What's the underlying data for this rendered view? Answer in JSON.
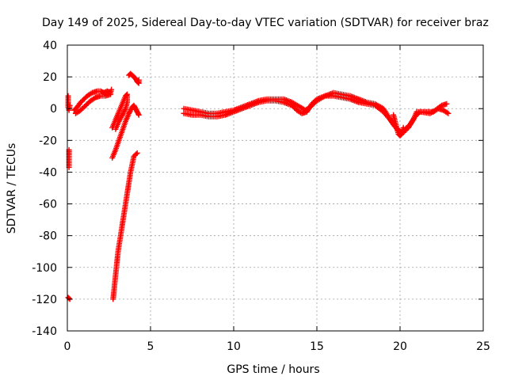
{
  "chart_data": {
    "type": "scatter",
    "title": "Day 149 of 2025, Sidereal Day-to-day VTEC variation (SDTVAR) for receiver braz",
    "xlabel": "GPS time / hours",
    "ylabel": "SDTVAR / TECUs",
    "xlim": [
      0,
      25
    ],
    "ylim": [
      -140,
      40
    ],
    "xticks": [
      0,
      5,
      10,
      15,
      20,
      25
    ],
    "yticks": [
      -140,
      -120,
      -100,
      -80,
      -60,
      -40,
      -20,
      0,
      20,
      40
    ],
    "grid": true,
    "marker": "+",
    "series": [
      {
        "name": "SDTVAR",
        "color": "#ff0000",
        "segments": [
          [
            [
              0.05,
              8
            ],
            [
              0.05,
              1
            ],
            [
              0.1,
              -1
            ],
            [
              0.15,
              2
            ]
          ],
          [
            [
              0.1,
              -26
            ],
            [
              0.1,
              -37
            ]
          ],
          [
            [
              0.05,
              -119
            ],
            [
              0.15,
              -120
            ]
          ],
          [
            [
              0.4,
              -1
            ],
            [
              0.6,
              1
            ],
            [
              0.8,
              4
            ],
            [
              1.0,
              6
            ],
            [
              1.2,
              8
            ],
            [
              1.5,
              10
            ],
            [
              1.8,
              11
            ],
            [
              2.0,
              11
            ],
            [
              2.2,
              10
            ],
            [
              2.4,
              11
            ],
            [
              2.6,
              10
            ],
            [
              2.65,
              12
            ]
          ],
          [
            [
              0.5,
              -3
            ],
            [
              0.8,
              -1
            ],
            [
              1.1,
              2
            ],
            [
              1.4,
              5
            ],
            [
              1.7,
              7
            ],
            [
              2.0,
              8
            ],
            [
              2.3,
              8
            ],
            [
              2.6,
              9
            ]
          ],
          [
            [
              2.7,
              -12
            ],
            [
              2.9,
              -7
            ],
            [
              3.1,
              -2
            ],
            [
              3.3,
              3
            ],
            [
              3.5,
              8
            ],
            [
              3.6,
              9
            ],
            [
              3.6,
              4
            ],
            [
              3.5,
              0
            ],
            [
              3.3,
              -4
            ],
            [
              3.1,
              -8
            ],
            [
              2.9,
              -13
            ]
          ],
          [
            [
              2.7,
              -31
            ],
            [
              2.9,
              -26
            ],
            [
              3.1,
              -20
            ],
            [
              3.3,
              -14
            ],
            [
              3.5,
              -8
            ],
            [
              3.7,
              -3
            ],
            [
              3.9,
              1
            ],
            [
              4.0,
              2
            ],
            [
              4.1,
              0
            ],
            [
              4.2,
              -2
            ],
            [
              4.3,
              -4
            ]
          ],
          [
            [
              2.75,
              -120
            ],
            [
              2.85,
              -110
            ],
            [
              2.95,
              -100
            ],
            [
              3.05,
              -90
            ],
            [
              3.2,
              -80
            ],
            [
              3.35,
              -70
            ],
            [
              3.5,
              -60
            ],
            [
              3.65,
              -50
            ],
            [
              3.8,
              -40
            ],
            [
              4.0,
              -30
            ],
            [
              4.2,
              -28
            ]
          ],
          [
            [
              3.7,
              21
            ],
            [
              3.8,
              22
            ],
            [
              3.9,
              21
            ],
            [
              4.0,
              20
            ],
            [
              4.1,
              19
            ],
            [
              4.2,
              17
            ],
            [
              4.3,
              16
            ],
            [
              4.3,
              18
            ]
          ],
          [
            [
              7.0,
              0
            ],
            [
              7.5,
              -1
            ],
            [
              8.0,
              -2
            ],
            [
              8.5,
              -3
            ],
            [
              9.0,
              -3
            ],
            [
              9.5,
              -2
            ],
            [
              10.0,
              -1
            ],
            [
              10.5,
              1
            ],
            [
              11.0,
              3
            ],
            [
              11.5,
              5
            ],
            [
              12.0,
              6
            ],
            [
              12.5,
              6
            ],
            [
              13.0,
              6
            ],
            [
              13.5,
              4
            ],
            [
              14.0,
              1
            ],
            [
              14.3,
              -1
            ],
            [
              14.6,
              1
            ],
            [
              15.0,
              5
            ],
            [
              15.5,
              8
            ],
            [
              16.0,
              10
            ],
            [
              16.5,
              9
            ],
            [
              17.0,
              8
            ],
            [
              17.5,
              6
            ],
            [
              18.0,
              4
            ],
            [
              18.5,
              3
            ],
            [
              19.0,
              0
            ],
            [
              19.3,
              -5
            ],
            [
              19.6,
              -10
            ],
            [
              19.9,
              -14
            ],
            [
              20.2,
              -15
            ],
            [
              20.5,
              -12
            ],
            [
              20.8,
              -7
            ],
            [
              21.0,
              -2
            ],
            [
              21.5,
              -2
            ],
            [
              22.0,
              -2
            ],
            [
              22.5,
              2
            ],
            [
              22.8,
              3
            ]
          ],
          [
            [
              7.0,
              -3
            ],
            [
              7.5,
              -4
            ],
            [
              8.0,
              -4
            ],
            [
              8.5,
              -5
            ],
            [
              9.0,
              -5
            ],
            [
              9.5,
              -4
            ],
            [
              10.0,
              -2
            ],
            [
              10.5,
              0
            ],
            [
              11.0,
              2
            ],
            [
              11.5,
              4
            ],
            [
              12.0,
              5
            ],
            [
              12.5,
              5
            ],
            [
              13.0,
              4
            ],
            [
              13.5,
              2
            ],
            [
              13.8,
              -1
            ],
            [
              14.1,
              -3
            ],
            [
              14.4,
              -2
            ],
            [
              14.7,
              3
            ],
            [
              15.0,
              6
            ],
            [
              15.5,
              8
            ],
            [
              16.0,
              8
            ],
            [
              16.5,
              7
            ],
            [
              17.0,
              6
            ],
            [
              17.5,
              4
            ],
            [
              18.0,
              3
            ],
            [
              18.5,
              2
            ],
            [
              19.0,
              -2
            ],
            [
              19.4,
              -7
            ],
            [
              19.7,
              -11
            ],
            [
              20.0,
              -15
            ],
            [
              20.3,
              -13
            ],
            [
              20.6,
              -10
            ],
            [
              20.9,
              -5
            ],
            [
              21.2,
              -2
            ],
            [
              21.8,
              -3
            ],
            [
              22.3,
              0
            ],
            [
              22.6,
              -1
            ],
            [
              22.9,
              -3
            ]
          ],
          [
            [
              19.6,
              -4
            ],
            [
              19.7,
              -8
            ],
            [
              19.8,
              -12
            ],
            [
              19.9,
              -16
            ],
            [
              20.0,
              -17
            ],
            [
              20.1,
              -16
            ],
            [
              20.2,
              -12
            ]
          ]
        ]
      }
    ]
  }
}
